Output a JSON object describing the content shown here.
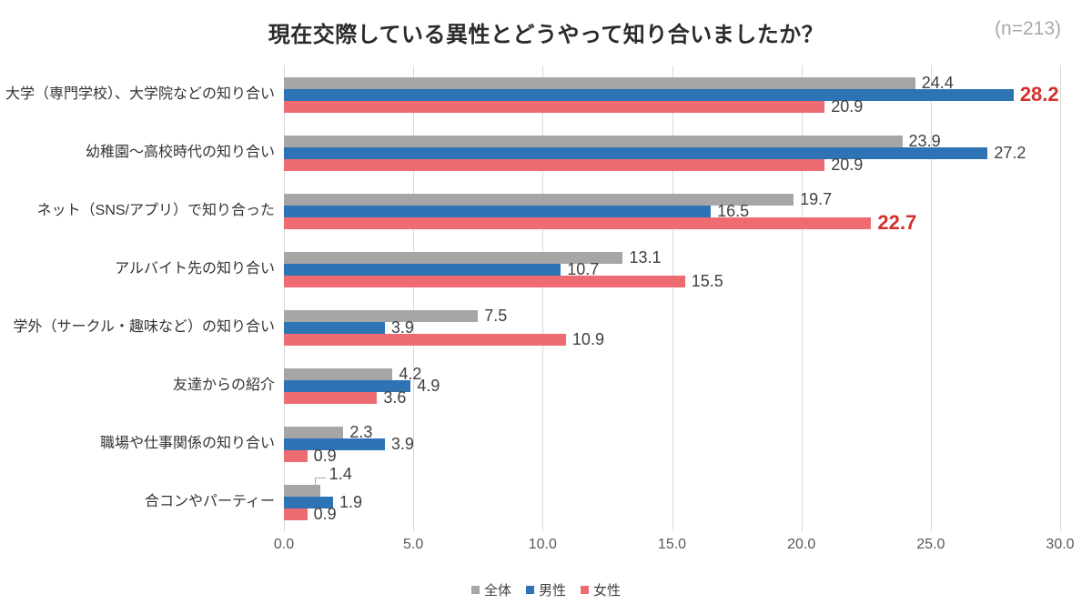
{
  "title": {
    "text": "現在交際している異性とどうやって知り合いましたか？",
    "sample_size": "(n=213)"
  },
  "chart_data": {
    "type": "bar",
    "orientation": "horizontal",
    "title": "現在交際している異性とどうやって知り合いましたか？",
    "subtitle": "(n=213)",
    "categories": [
      "大学（専門学校）、大学院などの知り合い",
      "幼稚園～高校時代の知り合い",
      "ネット（SNS/アプリ）で知り合った",
      "アルバイト先の知り合い",
      "学外（サークル・趣味など）の知り合い",
      "友達からの紹介",
      "職場や仕事関係の知り合い",
      "合コンやパーティー"
    ],
    "series": [
      {
        "name": "全体",
        "color": "#a6a6a6",
        "values": [
          24.4,
          23.9,
          19.7,
          13.1,
          7.5,
          4.2,
          2.3,
          1.4
        ]
      },
      {
        "name": "男性",
        "color": "#2e74b5",
        "values": [
          28.2,
          27.2,
          16.5,
          10.7,
          3.9,
          4.9,
          3.9,
          1.9
        ]
      },
      {
        "name": "女性",
        "color": "#ef6b72",
        "values": [
          20.9,
          20.9,
          22.7,
          15.5,
          10.9,
          3.6,
          0.9,
          0.9
        ]
      }
    ],
    "xlim": [
      0,
      30
    ],
    "x_ticks": [
      "0.0",
      "5.0",
      "10.0",
      "15.0",
      "20.0",
      "25.0",
      "30.0"
    ],
    "grid": true,
    "grid_color": "#d9d9d9",
    "legend_position": "bottom",
    "value_label_color": "#404040",
    "highlight_color": "#d2302c",
    "highlights": [
      {
        "category_index": 0,
        "series_index": 1
      },
      {
        "category_index": 2,
        "series_index": 2
      }
    ],
    "leader_lines": [
      {
        "category_index": 7,
        "series_index": 0
      }
    ]
  }
}
